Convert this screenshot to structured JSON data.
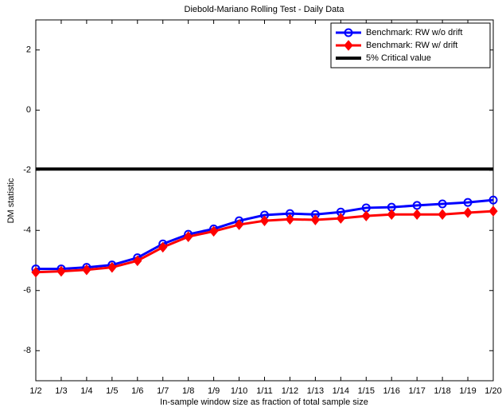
{
  "chart_data": {
    "type": "line",
    "title": "Diebold-Mariano Rolling Test - Daily Data",
    "x_label": "In-sample window size as fraction of total sample size",
    "y_label": "DM statistic",
    "categories": [
      "1/2",
      "1/3",
      "1/4",
      "1/5",
      "1/6",
      "1/7",
      "1/8",
      "1/9",
      "1/10",
      "1/11",
      "1/12",
      "1/13",
      "1/14",
      "1/15",
      "1/16",
      "1/17",
      "1/18",
      "1/19",
      "1/20"
    ],
    "series": [
      {
        "name": "Benchmark: RW w/o drift",
        "color": "#0000ff",
        "marker": "circle",
        "values": [
          -5.28,
          -5.28,
          -5.23,
          -5.15,
          -4.91,
          -4.45,
          -4.13,
          -3.95,
          -3.68,
          -3.49,
          -3.44,
          -3.47,
          -3.39,
          -3.25,
          -3.23,
          -3.17,
          -3.12,
          -3.07,
          -2.99
        ]
      },
      {
        "name": "Benchmark: RW w/ drift",
        "color": "#ff0000",
        "marker": "diamond",
        "values": [
          -5.39,
          -5.36,
          -5.31,
          -5.23,
          -5.01,
          -4.56,
          -4.21,
          -4.03,
          -3.81,
          -3.68,
          -3.63,
          -3.65,
          -3.6,
          -3.52,
          -3.47,
          -3.47,
          -3.47,
          -3.41,
          -3.36
        ]
      }
    ],
    "reference_line": {
      "name": "5% Critical value",
      "value": -1.96,
      "color": "#000000"
    },
    "ylim": [
      -9,
      3
    ],
    "yticks": [
      -8,
      -6,
      -4,
      -2,
      0,
      2
    ],
    "legend": "top-right"
  }
}
